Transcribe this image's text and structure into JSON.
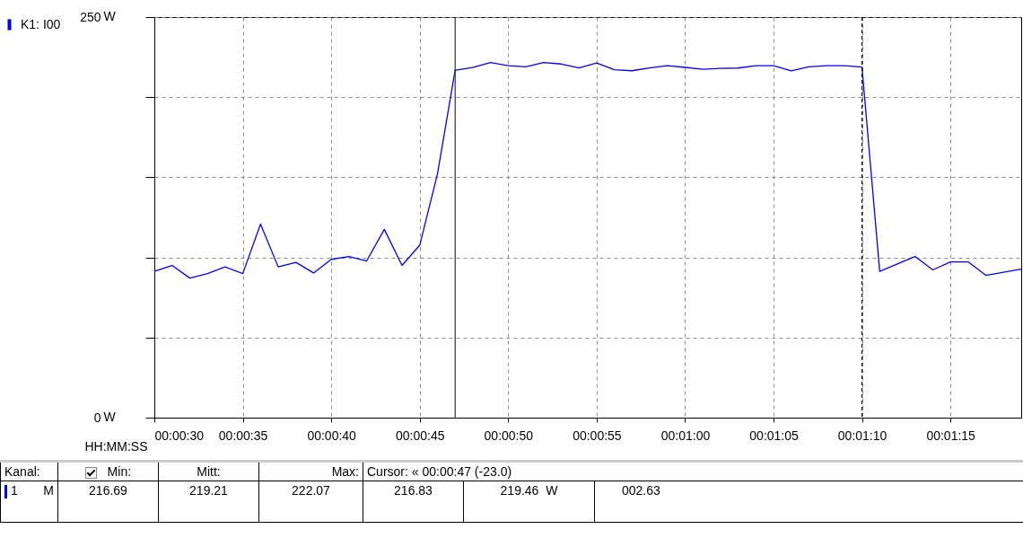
{
  "chart_data": {
    "type": "line",
    "xlabel": "HH:MM:SS",
    "ylabel": "W",
    "x": [
      0.008333,
      0.008611,
      0.008889,
      0.009167,
      0.009444,
      0.009722,
      0.01,
      0.010278,
      0.010556,
      0.010833,
      0.011111,
      0.011389,
      0.011667,
      0.011944,
      0.012222,
      0.0125,
      0.012778,
      0.013056,
      0.013333,
      0.013611,
      0.013889,
      0.014167,
      0.014444,
      0.014722,
      0.015,
      0.015278,
      0.015556,
      0.015833,
      0.016111,
      0.016389,
      0.016667,
      0.016944,
      0.017222,
      0.0175,
      0.017778,
      0.018056,
      0.018333,
      0.018611,
      0.018889,
      0.019167,
      0.019444,
      0.019722,
      0.02,
      0.020278,
      0.020556,
      0.020833,
      0.021111,
      0.021389,
      0.021667,
      0.021944
    ],
    "series": [
      {
        "name": "K1: I00",
        "color": "#0000ff",
        "values": [
          91.3,
          95.0,
          87.1,
          89.9,
          94.1,
          89.9,
          120.8,
          94.1,
          96.9,
          90.3,
          98.8,
          100.6,
          97.8,
          117.5,
          95.0,
          107.6,
          152,
          216.8,
          218.6,
          221.6,
          219.7,
          219.0,
          221.6,
          220.7,
          218.2,
          221.4,
          217.1,
          216.5,
          218.2,
          219.7,
          218.6,
          217.4,
          218.0,
          218.2,
          219.7,
          219.7,
          216.5,
          219.0,
          219.7,
          219.7,
          218.8,
          91.3,
          95.9,
          100.6,
          92.2,
          97.2,
          97.2,
          88.8,
          90.7,
          92.7
        ]
      }
    ],
    "xlim": [
      0.008333,
      0.021944
    ],
    "xticks": [
      {
        "value": 0.008333,
        "label": "00:00:30"
      },
      {
        "value": 0.009722,
        "label": "00:00:35"
      },
      {
        "value": 0.011111,
        "label": "00:00:40"
      },
      {
        "value": 0.0125,
        "label": "00:00:45"
      },
      {
        "value": 0.013889,
        "label": "00:00:50"
      },
      {
        "value": 0.015278,
        "label": "00:00:55"
      },
      {
        "value": 0.016667,
        "label": "00:01:00"
      },
      {
        "value": 0.018056,
        "label": "00:01:05"
      },
      {
        "value": 0.019444,
        "label": "00:01:10"
      },
      {
        "value": 0.020833,
        "label": "00:01:15"
      }
    ],
    "ylim": [
      0,
      250
    ],
    "yticks": [
      0,
      {
        "value": 50,
        "label": null
      },
      {
        "value": 100,
        "label": null
      },
      {
        "value": 150,
        "label": null
      },
      {
        "value": 200,
        "label": null
      },
      250
    ],
    "grid": true,
    "legend": "left",
    "ref_lines": [
      {
        "axis": "x",
        "value": 0.013056,
        "color": "#333333",
        "line_style": "solid"
      },
      {
        "axis": "x",
        "value": 0.019444,
        "color": "#000000",
        "line_style": "dashed"
      }
    ],
    "annotations": [
      "Kanal:",
      "Min:",
      "Mitt:",
      "Max:",
      "Cursor: « 00:00:47 (-23.0)",
      "1",
      "M",
      "216.69",
      "219.21",
      "222.07",
      "216.83",
      "219.46  W",
      "002.63"
    ]
  }
}
